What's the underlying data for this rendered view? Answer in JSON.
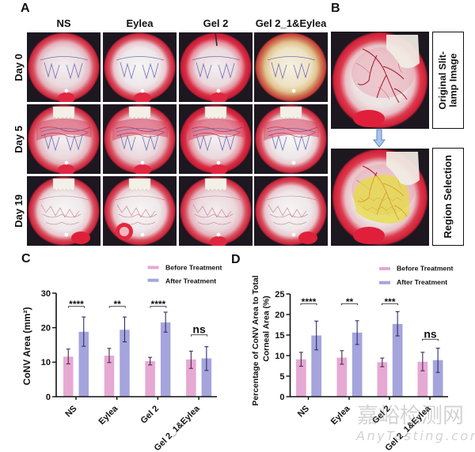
{
  "panel_letters": {
    "a": "A",
    "b": "B",
    "c": "C",
    "d": "D"
  },
  "panel_a": {
    "columns": [
      "NS",
      "Eylea",
      "Gel 2",
      "Gel 2_1&Eylea"
    ],
    "rows": [
      "Day 0",
      "Day 5",
      "Day 19"
    ]
  },
  "panel_b": {
    "original_label_lines": [
      "Original Slit-",
      "lamp Image"
    ],
    "region_label": "Region Selection"
  },
  "watermark": {
    "cjk": "嘉峪检测网",
    "latin": "AnyTesting.com"
  },
  "chart_data": [
    {
      "type": "bar",
      "title": "",
      "xlabel": "",
      "categories": [
        "NS",
        "Eylea",
        "Gel 2",
        "Gel 2_1&Eylea"
      ],
      "series": [
        {
          "name": "Before Treatment",
          "color": "#e6a9d3",
          "error_color": "#4a2a4e",
          "values": [
            11.6,
            11.9,
            10.3,
            10.8
          ],
          "error_low": [
            9.5,
            9.9,
            9.2,
            8.2
          ],
          "error_high": [
            13.8,
            14.0,
            11.4,
            13.2
          ]
        },
        {
          "name": "After Treatment",
          "color": "#a5a4dd",
          "error_color": "#2b2f6a",
          "values": [
            18.8,
            19.4,
            21.5,
            11.1
          ],
          "error_low": [
            14.6,
            15.9,
            18.7,
            7.6
          ],
          "error_high": [
            23.1,
            23.1,
            24.5,
            14.5
          ]
        }
      ],
      "ylabel": "CoNV Area (mm²)",
      "ylim": [
        0,
        30
      ],
      "yticks": [
        0,
        10,
        20,
        30
      ],
      "significance": [
        "****",
        "**",
        "****",
        "ns"
      ],
      "legend": "top-right",
      "grid": false
    },
    {
      "type": "bar",
      "title": "",
      "xlabel": "",
      "categories": [
        "NS",
        "Eylea",
        "Gel 2",
        "Gel 2_1&Eylea"
      ],
      "series": [
        {
          "name": "Before Treatment",
          "color": "#e6a9d3",
          "error_color": "#4a2a4e",
          "values": [
            9.1,
            9.5,
            8.4,
            8.5
          ],
          "error_low": [
            7.4,
            7.9,
            7.3,
            6.3
          ],
          "error_high": [
            10.8,
            11.2,
            9.4,
            10.8
          ]
        },
        {
          "name": "After Treatment",
          "color": "#a5a4dd",
          "error_color": "#2b2f6a",
          "values": [
            14.9,
            15.6,
            17.7,
            8.9
          ],
          "error_low": [
            11.4,
            12.7,
            14.8,
            5.9
          ],
          "error_high": [
            18.4,
            18.5,
            20.7,
            11.8
          ]
        }
      ],
      "ylabel_lines": [
        "Percentage of CoNV Area to Total",
        "Corneal Area (%)"
      ],
      "ylim": [
        0,
        25
      ],
      "yticks": [
        0,
        5,
        10,
        15,
        20,
        25
      ],
      "significance": [
        "****",
        "**",
        "***",
        "ns"
      ],
      "legend": "top-right",
      "grid": false
    }
  ]
}
